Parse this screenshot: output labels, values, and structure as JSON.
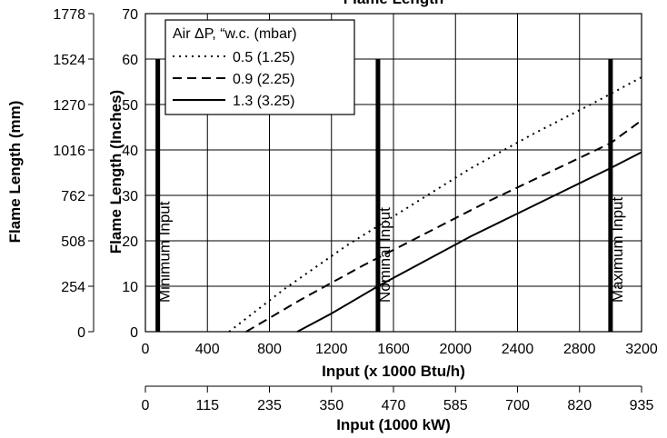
{
  "chart_data": {
    "type": "line",
    "title": "Flame Length",
    "xlabel": "Input (x 1000 Btu/h)",
    "ylabel": "Flame Length (Inches)",
    "y2label": "Flame Length (mm)",
    "x2label": "Input (1000 kW)",
    "xlim": [
      0,
      3200
    ],
    "ylim": [
      0,
      70
    ],
    "xticks": [
      "0",
      "400",
      "800",
      "1200",
      "1600",
      "2000",
      "2400",
      "2800",
      "3200"
    ],
    "yticks": [
      "0",
      "10",
      "20",
      "30",
      "40",
      "50",
      "60",
      "70"
    ],
    "y2ticks": [
      "0",
      "254",
      "508",
      "762",
      "1016",
      "1270",
      "1524",
      "1778"
    ],
    "x2ticks": [
      "0",
      "115",
      "235",
      "350",
      "470",
      "585",
      "700",
      "820",
      "935"
    ],
    "grid": true,
    "legend": {
      "title": "Air ΔP, “w.c. (mbar)",
      "position": "top-left"
    },
    "series": [
      {
        "name": "0.5 (1.25)",
        "style": "dotted",
        "x": [
          540,
          900,
          1300,
          1700,
          2100,
          2500,
          2900,
          3200
        ],
        "y": [
          0,
          9.5,
          19,
          27.5,
          36,
          43.5,
          50.5,
          56
        ]
      },
      {
        "name": "0.9 (2.25)",
        "style": "dashed",
        "x": [
          650,
          1000,
          1400,
          1800,
          2200,
          2600,
          3000,
          3200
        ],
        "y": [
          0,
          7,
          14.5,
          21.5,
          28.5,
          35,
          41.5,
          46.5
        ]
      },
      {
        "name": "1.3 (3.25)",
        "style": "solid",
        "x": [
          980,
          1200,
          1500,
          1800,
          2100,
          2400,
          2700,
          3000,
          3200
        ],
        "y": [
          0,
          4,
          10,
          15.5,
          21,
          26,
          31,
          36,
          39.5
        ]
      }
    ],
    "markers": [
      {
        "label": "Minimum Input",
        "x": 80,
        "y_top": 60
      },
      {
        "label": "Nominal Input",
        "x": 1500,
        "y_top": 60
      },
      {
        "label": "Maximum Input",
        "x": 3000,
        "y_top": 60
      }
    ],
    "colors": {
      "line": "#000000",
      "grid": "#000000",
      "background": "#ffffff"
    }
  }
}
